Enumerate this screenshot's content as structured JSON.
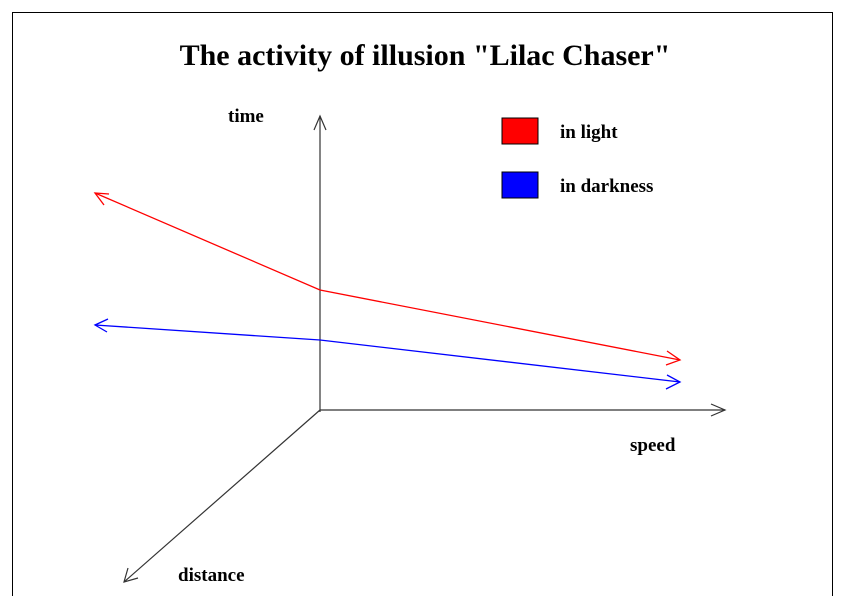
{
  "title": "The activity of illusion \"Lilac Chaser\"",
  "axes": {
    "vertical": "time",
    "horizontal": "speed",
    "depth": "distance"
  },
  "legend": [
    {
      "label": "in light",
      "color": "#ff0000"
    },
    {
      "label": "in darkness",
      "color": "#0000ff"
    }
  ]
}
